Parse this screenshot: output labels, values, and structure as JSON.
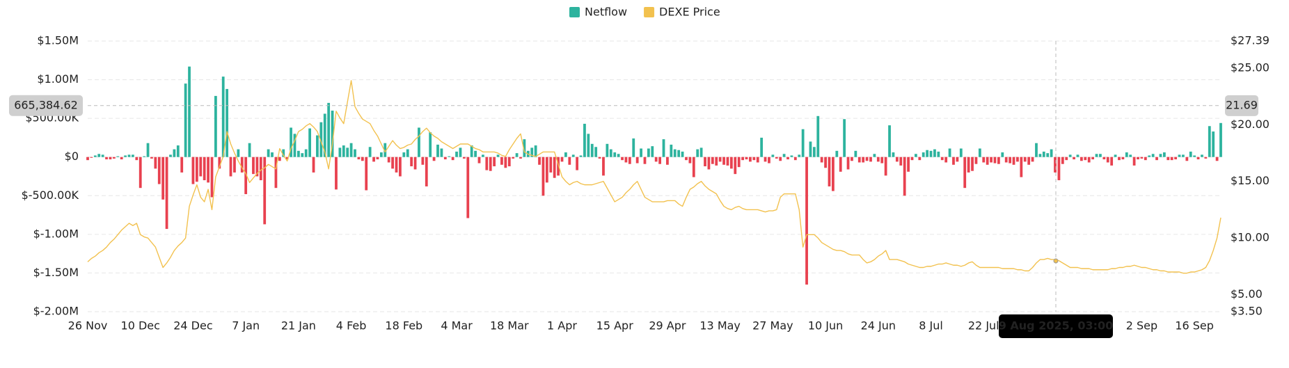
{
  "chart_data": {
    "type": "combo",
    "categories": [
      "26 Nov",
      null,
      null,
      null,
      null,
      null,
      null,
      null,
      null,
      null,
      null,
      null,
      null,
      null,
      "10 Dec",
      null,
      null,
      null,
      null,
      null,
      null,
      null,
      null,
      null,
      null,
      null,
      null,
      null,
      "24 Dec",
      null,
      null,
      null,
      null,
      null,
      null,
      null,
      null,
      null,
      null,
      null,
      null,
      null,
      "7 Jan",
      null,
      null,
      null,
      null,
      null,
      null,
      null,
      null,
      null,
      null,
      null,
      null,
      null,
      "21 Jan",
      null,
      null,
      null,
      null,
      null,
      null,
      null,
      null,
      null,
      null,
      null,
      null,
      null,
      "4 Feb",
      null,
      null,
      null,
      null,
      null,
      null,
      null,
      null,
      null,
      null,
      null,
      null,
      null,
      "18 Feb",
      null,
      null,
      null,
      null,
      null,
      null,
      null,
      null,
      null,
      null,
      null,
      null,
      null,
      "4 Mar",
      null,
      null,
      null,
      null,
      null,
      null,
      null,
      null,
      null,
      null,
      null,
      null,
      null,
      "18 Mar",
      null,
      null,
      null,
      null,
      null,
      null,
      null,
      null,
      null,
      null,
      null,
      null,
      null,
      "1 Apr",
      null,
      null,
      null,
      null,
      null,
      null,
      null,
      null,
      null,
      null,
      null,
      null,
      null,
      "15 Apr",
      null,
      null,
      null,
      null,
      null,
      null,
      null,
      null,
      null,
      null,
      null,
      null,
      null,
      "29 Apr",
      null,
      null,
      null,
      null,
      null,
      null,
      null,
      null,
      null,
      null,
      null,
      null,
      null,
      "13 May",
      null,
      null,
      null,
      null,
      null,
      null,
      null,
      null,
      null,
      null,
      null,
      null,
      null,
      "27 May",
      null,
      null,
      null,
      null,
      null,
      null,
      null,
      null,
      null,
      null,
      null,
      null,
      null,
      "10 Jun",
      null,
      null,
      null,
      null,
      null,
      null,
      null,
      null,
      null,
      null,
      null,
      null,
      null,
      "24 Jun",
      null,
      null,
      null,
      null,
      null,
      null,
      null,
      null,
      null,
      null,
      null,
      null,
      null,
      "8 Jul",
      null,
      null,
      null,
      null,
      null,
      null,
      null,
      null,
      null,
      null,
      null,
      null,
      null,
      "22 Jul",
      null,
      null,
      null,
      null,
      null,
      null,
      null,
      null,
      null,
      null,
      null,
      null,
      null,
      null,
      null,
      null,
      null,
      null,
      null,
      null,
      null,
      null,
      null,
      null,
      null,
      null,
      null,
      null,
      null,
      null,
      null,
      null,
      null,
      null,
      null,
      null,
      null,
      null,
      null,
      null,
      null,
      "2 Sep",
      null,
      null,
      null,
      null,
      null,
      null,
      null,
      null,
      null,
      null,
      null,
      null,
      null,
      "16 Sep",
      null,
      null,
      null,
      null,
      null,
      null,
      null
    ],
    "series": [
      {
        "name": "Netflow",
        "type": "bar",
        "color": "#2db39e",
        "negative_color": "#e8414f",
        "axis": "y",
        "values": [
          -40000,
          -10000,
          20000,
          40000,
          30000,
          -30000,
          -30000,
          -20000,
          10000,
          -30000,
          20000,
          30000,
          30000,
          -40000,
          -400000,
          10000,
          180000,
          -20000,
          -150000,
          -350000,
          -550000,
          -930000,
          30000,
          100000,
          150000,
          -200000,
          950000,
          1170000,
          -350000,
          -320000,
          -250000,
          -300000,
          -330000,
          -520000,
          790000,
          -150000,
          1040000,
          880000,
          -250000,
          -200000,
          100000,
          -200000,
          -480000,
          180000,
          -220000,
          -250000,
          -300000,
          -870000,
          100000,
          60000,
          -400000,
          -50000,
          100000,
          -30000,
          380000,
          300000,
          80000,
          50000,
          100000,
          370000,
          -200000,
          280000,
          450000,
          560000,
          700000,
          600000,
          -420000,
          120000,
          150000,
          120000,
          180000,
          100000,
          -30000,
          -50000,
          -430000,
          130000,
          -60000,
          -30000,
          60000,
          180000,
          -70000,
          -150000,
          -200000,
          -250000,
          60000,
          100000,
          -120000,
          -160000,
          380000,
          -100000,
          -380000,
          320000,
          -50000,
          160000,
          110000,
          -30000,
          10000,
          -40000,
          70000,
          120000,
          -20000,
          -790000,
          150000,
          80000,
          -80000,
          30000,
          -170000,
          -180000,
          -120000,
          30000,
          -100000,
          -140000,
          -120000,
          -20000,
          50000,
          -20000,
          230000,
          80000,
          120000,
          150000,
          -100000,
          -500000,
          -330000,
          -200000,
          -270000,
          -240000,
          -60000,
          60000,
          -100000,
          30000,
          -170000,
          20000,
          430000,
          300000,
          170000,
          130000,
          -20000,
          -240000,
          170000,
          100000,
          60000,
          40000,
          -40000,
          -70000,
          -90000,
          240000,
          -80000,
          110000,
          -90000,
          110000,
          140000,
          -60000,
          -90000,
          230000,
          -100000,
          160000,
          100000,
          90000,
          70000,
          -40000,
          -80000,
          -260000,
          100000,
          120000,
          -120000,
          -160000,
          -90000,
          -110000,
          -60000,
          -100000,
          -110000,
          -150000,
          -220000,
          -130000,
          -40000,
          -30000,
          -60000,
          -40000,
          -70000,
          250000,
          -60000,
          -80000,
          30000,
          -20000,
          -50000,
          40000,
          -30000,
          20000,
          -40000,
          30000,
          360000,
          -1650000,
          200000,
          130000,
          530000,
          -70000,
          -140000,
          -380000,
          -440000,
          80000,
          -190000,
          490000,
          -160000,
          -50000,
          80000,
          -70000,
          -70000,
          -50000,
          -60000,
          40000,
          -60000,
          -80000,
          -240000,
          410000,
          60000,
          -60000,
          -110000,
          -500000,
          -190000,
          -40000,
          40000,
          -40000,
          60000,
          90000,
          80000,
          100000,
          70000,
          -40000,
          -70000,
          110000,
          -100000,
          -60000,
          110000,
          -400000,
          -200000,
          -180000,
          -90000,
          110000,
          -70000,
          -100000,
          -70000,
          -80000,
          -90000,
          60000,
          -70000,
          -80000,
          -100000,
          -60000,
          -260000,
          -60000,
          -100000,
          -60000,
          180000,
          40000,
          70000,
          50000,
          100000,
          -200000,
          -300000,
          -90000,
          -40000,
          30000,
          -30000,
          30000,
          -50000,
          -40000,
          -70000,
          -30000,
          40000,
          40000,
          -30000,
          -70000,
          -110000,
          30000,
          -40000,
          -30000,
          60000,
          30000,
          -110000,
          -30000,
          -20000,
          -40000,
          20000,
          40000,
          -40000,
          40000,
          60000,
          -40000,
          -40000,
          -30000,
          30000,
          30000,
          -50000,
          70000,
          20000,
          -30000,
          30000,
          -20000,
          400000,
          330000,
          -50000,
          440000
        ]
      },
      {
        "name": "DEXE Price",
        "type": "line",
        "color": "#f2c14e",
        "axis": "y2",
        "values": [
          7.9,
          8.2,
          8.4,
          8.7,
          8.9,
          9.2,
          9.6,
          9.9,
          10.3,
          10.7,
          11.0,
          11.3,
          11.1,
          11.3,
          10.3,
          10.1,
          10.0,
          9.6,
          9.2,
          8.3,
          7.4,
          7.8,
          8.3,
          8.9,
          9.3,
          9.6,
          10.0,
          12.8,
          13.8,
          14.7,
          13.6,
          13.2,
          14.3,
          12.5,
          15.4,
          16.3,
          17.2,
          19.4,
          18.3,
          17.5,
          16.8,
          16.2,
          15.7,
          14.9,
          15.3,
          15.7,
          16.0,
          16.2,
          16.5,
          16.3,
          16.1,
          17.9,
          17.3,
          16.8,
          17.9,
          18.6,
          19.4,
          19.6,
          19.9,
          20.1,
          19.8,
          19.4,
          18.5,
          17.6,
          16.1,
          18.3,
          21.2,
          20.6,
          20.1,
          22.0,
          23.9,
          21.6,
          21.0,
          20.5,
          20.3,
          20.1,
          19.5,
          19.0,
          18.3,
          17.6,
          18.1,
          18.6,
          18.2,
          17.9,
          18.0,
          18.2,
          18.3,
          18.7,
          19.0,
          19.4,
          19.7,
          19.3,
          19.0,
          18.8,
          18.5,
          18.3,
          18.1,
          17.9,
          18.1,
          18.3,
          18.3,
          18.3,
          18.1,
          17.9,
          17.8,
          17.6,
          17.6,
          17.6,
          17.6,
          17.5,
          17.3,
          17.2,
          17.8,
          18.3,
          18.8,
          19.2,
          17.6,
          17.4,
          17.3,
          17.2,
          17.4,
          17.6,
          17.6,
          17.6,
          17.6,
          16.5,
          15.4,
          15.0,
          14.7,
          14.9,
          15.0,
          14.8,
          14.7,
          14.7,
          14.7,
          14.8,
          14.9,
          15.0,
          14.4,
          13.8,
          13.2,
          13.4,
          13.6,
          14.0,
          14.3,
          14.7,
          15.0,
          14.3,
          13.6,
          13.4,
          13.2,
          13.2,
          13.2,
          13.2,
          13.3,
          13.3,
          13.3,
          13.0,
          12.8,
          13.6,
          14.3,
          14.5,
          14.8,
          15.0,
          14.6,
          14.3,
          14.1,
          13.9,
          13.3,
          12.8,
          12.6,
          12.5,
          12.7,
          12.8,
          12.6,
          12.5,
          12.5,
          12.5,
          12.5,
          12.4,
          12.3,
          12.4,
          12.4,
          12.5,
          13.6,
          13.9,
          13.9,
          13.9,
          13.9,
          12.5,
          9.2,
          10.3,
          10.3,
          10.3,
          10.0,
          9.6,
          9.4,
          9.2,
          9.0,
          8.9,
          8.9,
          8.8,
          8.6,
          8.5,
          8.5,
          8.5,
          8.1,
          7.8,
          7.9,
          8.1,
          8.4,
          8.6,
          8.9,
          8.1,
          8.1,
          8.1,
          8.0,
          7.9,
          7.7,
          7.6,
          7.5,
          7.4,
          7.4,
          7.5,
          7.5,
          7.6,
          7.7,
          7.7,
          7.8,
          7.7,
          7.6,
          7.6,
          7.5,
          7.6,
          7.8,
          7.9,
          7.6,
          7.4,
          7.4,
          7.4,
          7.4,
          7.4,
          7.4,
          7.3,
          7.3,
          7.3,
          7.3,
          7.2,
          7.2,
          7.1,
          7.1,
          7.4,
          7.8,
          8.1,
          8.1,
          8.2,
          8.1,
          8.1,
          8.0,
          7.8,
          7.6,
          7.4,
          7.4,
          7.4,
          7.3,
          7.3,
          7.3,
          7.2,
          7.2,
          7.2,
          7.2,
          7.2,
          7.3,
          7.3,
          7.4,
          7.4,
          7.5,
          7.5,
          7.6,
          7.5,
          7.4,
          7.4,
          7.3,
          7.2,
          7.2,
          7.1,
          7.1,
          7.0,
          7.0,
          7.0,
          7.0,
          6.9,
          6.9,
          7.0,
          7.0,
          7.1,
          7.2,
          7.4,
          8.0,
          8.9,
          10.0,
          11.8
        ]
      }
    ],
    "ylim": [
      -2000000,
      1500000
    ],
    "yticks": [
      {
        "value": -2000000,
        "label": "$-2.00M"
      },
      {
        "value": -1500000,
        "label": "$-1.50M"
      },
      {
        "value": -1000000,
        "label": "$-1.00M"
      },
      {
        "value": -500000,
        "label": "$-500.00K"
      },
      {
        "value": 0,
        "label": "$0"
      },
      {
        "value": 500000,
        "label": "$500.00K"
      },
      {
        "value": 1000000,
        "label": "$1.00M"
      },
      {
        "value": 1500000,
        "label": "$1.50M"
      }
    ],
    "y2lim": [
      3.5,
      27.39
    ],
    "y2ticks": [
      {
        "value": 3.5,
        "label": "$3.50"
      },
      {
        "value": 5,
        "label": "$5.00"
      },
      {
        "value": 10,
        "label": "$10.00"
      },
      {
        "value": 15,
        "label": "$15.00"
      },
      {
        "value": 20,
        "label": "$20.00"
      },
      {
        "value": 25,
        "label": "$25.00"
      },
      {
        "value": 27.39,
        "label": "$27.39"
      }
    ],
    "grid": true,
    "legend": "top",
    "crosshair": {
      "label": "9 Aug 2025, 03:00",
      "y_label": {
        "value": 665384.62,
        "label": "665,384.62"
      },
      "y2_label": 21.69
    }
  }
}
